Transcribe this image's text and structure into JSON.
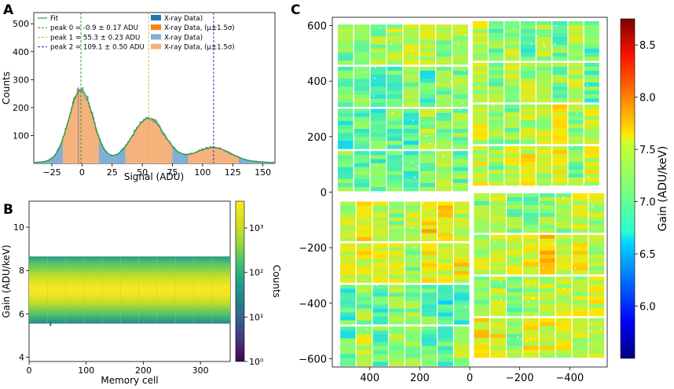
{
  "panels": {
    "a": "A",
    "b": "B",
    "c": "C"
  },
  "colors": {
    "fit": "#2ca02c",
    "peak0": "#228b22",
    "peak1": "#bcbd22",
    "peak2": "#1f1fd0",
    "xray_dark_blue": "#1f77b4",
    "xray_dark_orange": "#ff7f0e",
    "xray_light_blue": "#7fb0d8",
    "xray_light_orange": "#f6b27c"
  },
  "chart_data": [
    {
      "id": "A",
      "type": "area",
      "title": "",
      "xlabel": "Signal (ADU)",
      "ylabel": "Counts",
      "xlim": [
        -40,
        160
      ],
      "ylim": [
        0,
        540
      ],
      "xticks": [
        -25,
        0,
        25,
        50,
        75,
        100,
        125,
        150
      ],
      "yticks": [
        100,
        200,
        300,
        400,
        500
      ],
      "legend": [
        {
          "label": "Fit",
          "kind": "line",
          "color": "#2ca02c"
        },
        {
          "label": "peak 0 = -0.9 ± 0.17 ADU",
          "kind": "dash",
          "color": "#228b22"
        },
        {
          "label": "peak 1 = 55.3 ± 0.23 ADU",
          "kind": "dash",
          "color": "#bcbd22"
        },
        {
          "label": "peak 2 = 109.1 ± 0.50 ADU",
          "kind": "dash",
          "color": "#1f1fd0"
        },
        {
          "label": "X-ray Data)",
          "kind": "patch",
          "color": "#1f77b4"
        },
        {
          "label": "X-ray Data, (μ±1.5σ)",
          "kind": "patch",
          "color": "#ff7f0e"
        },
        {
          "label": "X-ray Data)",
          "kind": "patch",
          "color": "#7fb0d8"
        },
        {
          "label": "X-ray Data, (μ±1.5σ)",
          "kind": "patch",
          "color": "#f6b27c"
        }
      ],
      "peaks": [
        {
          "name": "peak 0",
          "mu": -0.9,
          "sigma": 10,
          "amp": 255,
          "color": "#228b22"
        },
        {
          "name": "peak 1",
          "mu": 55.3,
          "sigma": 13,
          "amp": 150,
          "color": "#bcbd22"
        },
        {
          "name": "peak 2",
          "mu": 109.1,
          "sigma": 14,
          "amp": 48,
          "color": "#1f1fd0"
        }
      ],
      "baseline": 12,
      "noise_spike": {
        "x": -3,
        "y": 275
      }
    },
    {
      "id": "B",
      "type": "heatmap",
      "xlabel": "Memory cell",
      "ylabel": "Gain (ADU/keV)",
      "xlim": [
        0,
        352
      ],
      "ylim": [
        3.8,
        11.2
      ],
      "xticks": [
        0,
        100,
        200,
        300
      ],
      "yticks": [
        4,
        6,
        8,
        10
      ],
      "band": {
        "low": 5.55,
        "high": 8.65,
        "center": 7.15
      },
      "colorbar": {
        "label": "Counts",
        "scale": "log",
        "range": [
          1,
          4000
        ],
        "ticks": [
          "10⁰",
          "10¹",
          "10²",
          "10³"
        ]
      }
    },
    {
      "id": "C",
      "type": "heatmap",
      "xlabel": "",
      "ylabel": "",
      "xlim": [
        550,
        -550
      ],
      "ylim": [
        -630,
        630
      ],
      "xticks": [
        400,
        200,
        0,
        -200,
        -400
      ],
      "yticks": [
        600,
        400,
        200,
        0,
        -200,
        -400,
        -600
      ],
      "colorbar": {
        "label": "Gain (ADU/keV)",
        "range": [
          5.5,
          8.75
        ],
        "ticks": [
          "6.0",
          "6.5",
          "7.0",
          "7.5",
          "8.0",
          "8.5"
        ]
      },
      "quadrants": [
        {
          "name": "top-left",
          "modules": 4,
          "mean_gain": 7.1
        },
        {
          "name": "top-right",
          "modules": 4,
          "mean_gain": 7.2
        },
        {
          "name": "bottom-left",
          "modules": 4,
          "mean_gain": 7.2
        },
        {
          "name": "bottom-right",
          "modules": 4,
          "mean_gain": 7.4
        }
      ]
    }
  ]
}
